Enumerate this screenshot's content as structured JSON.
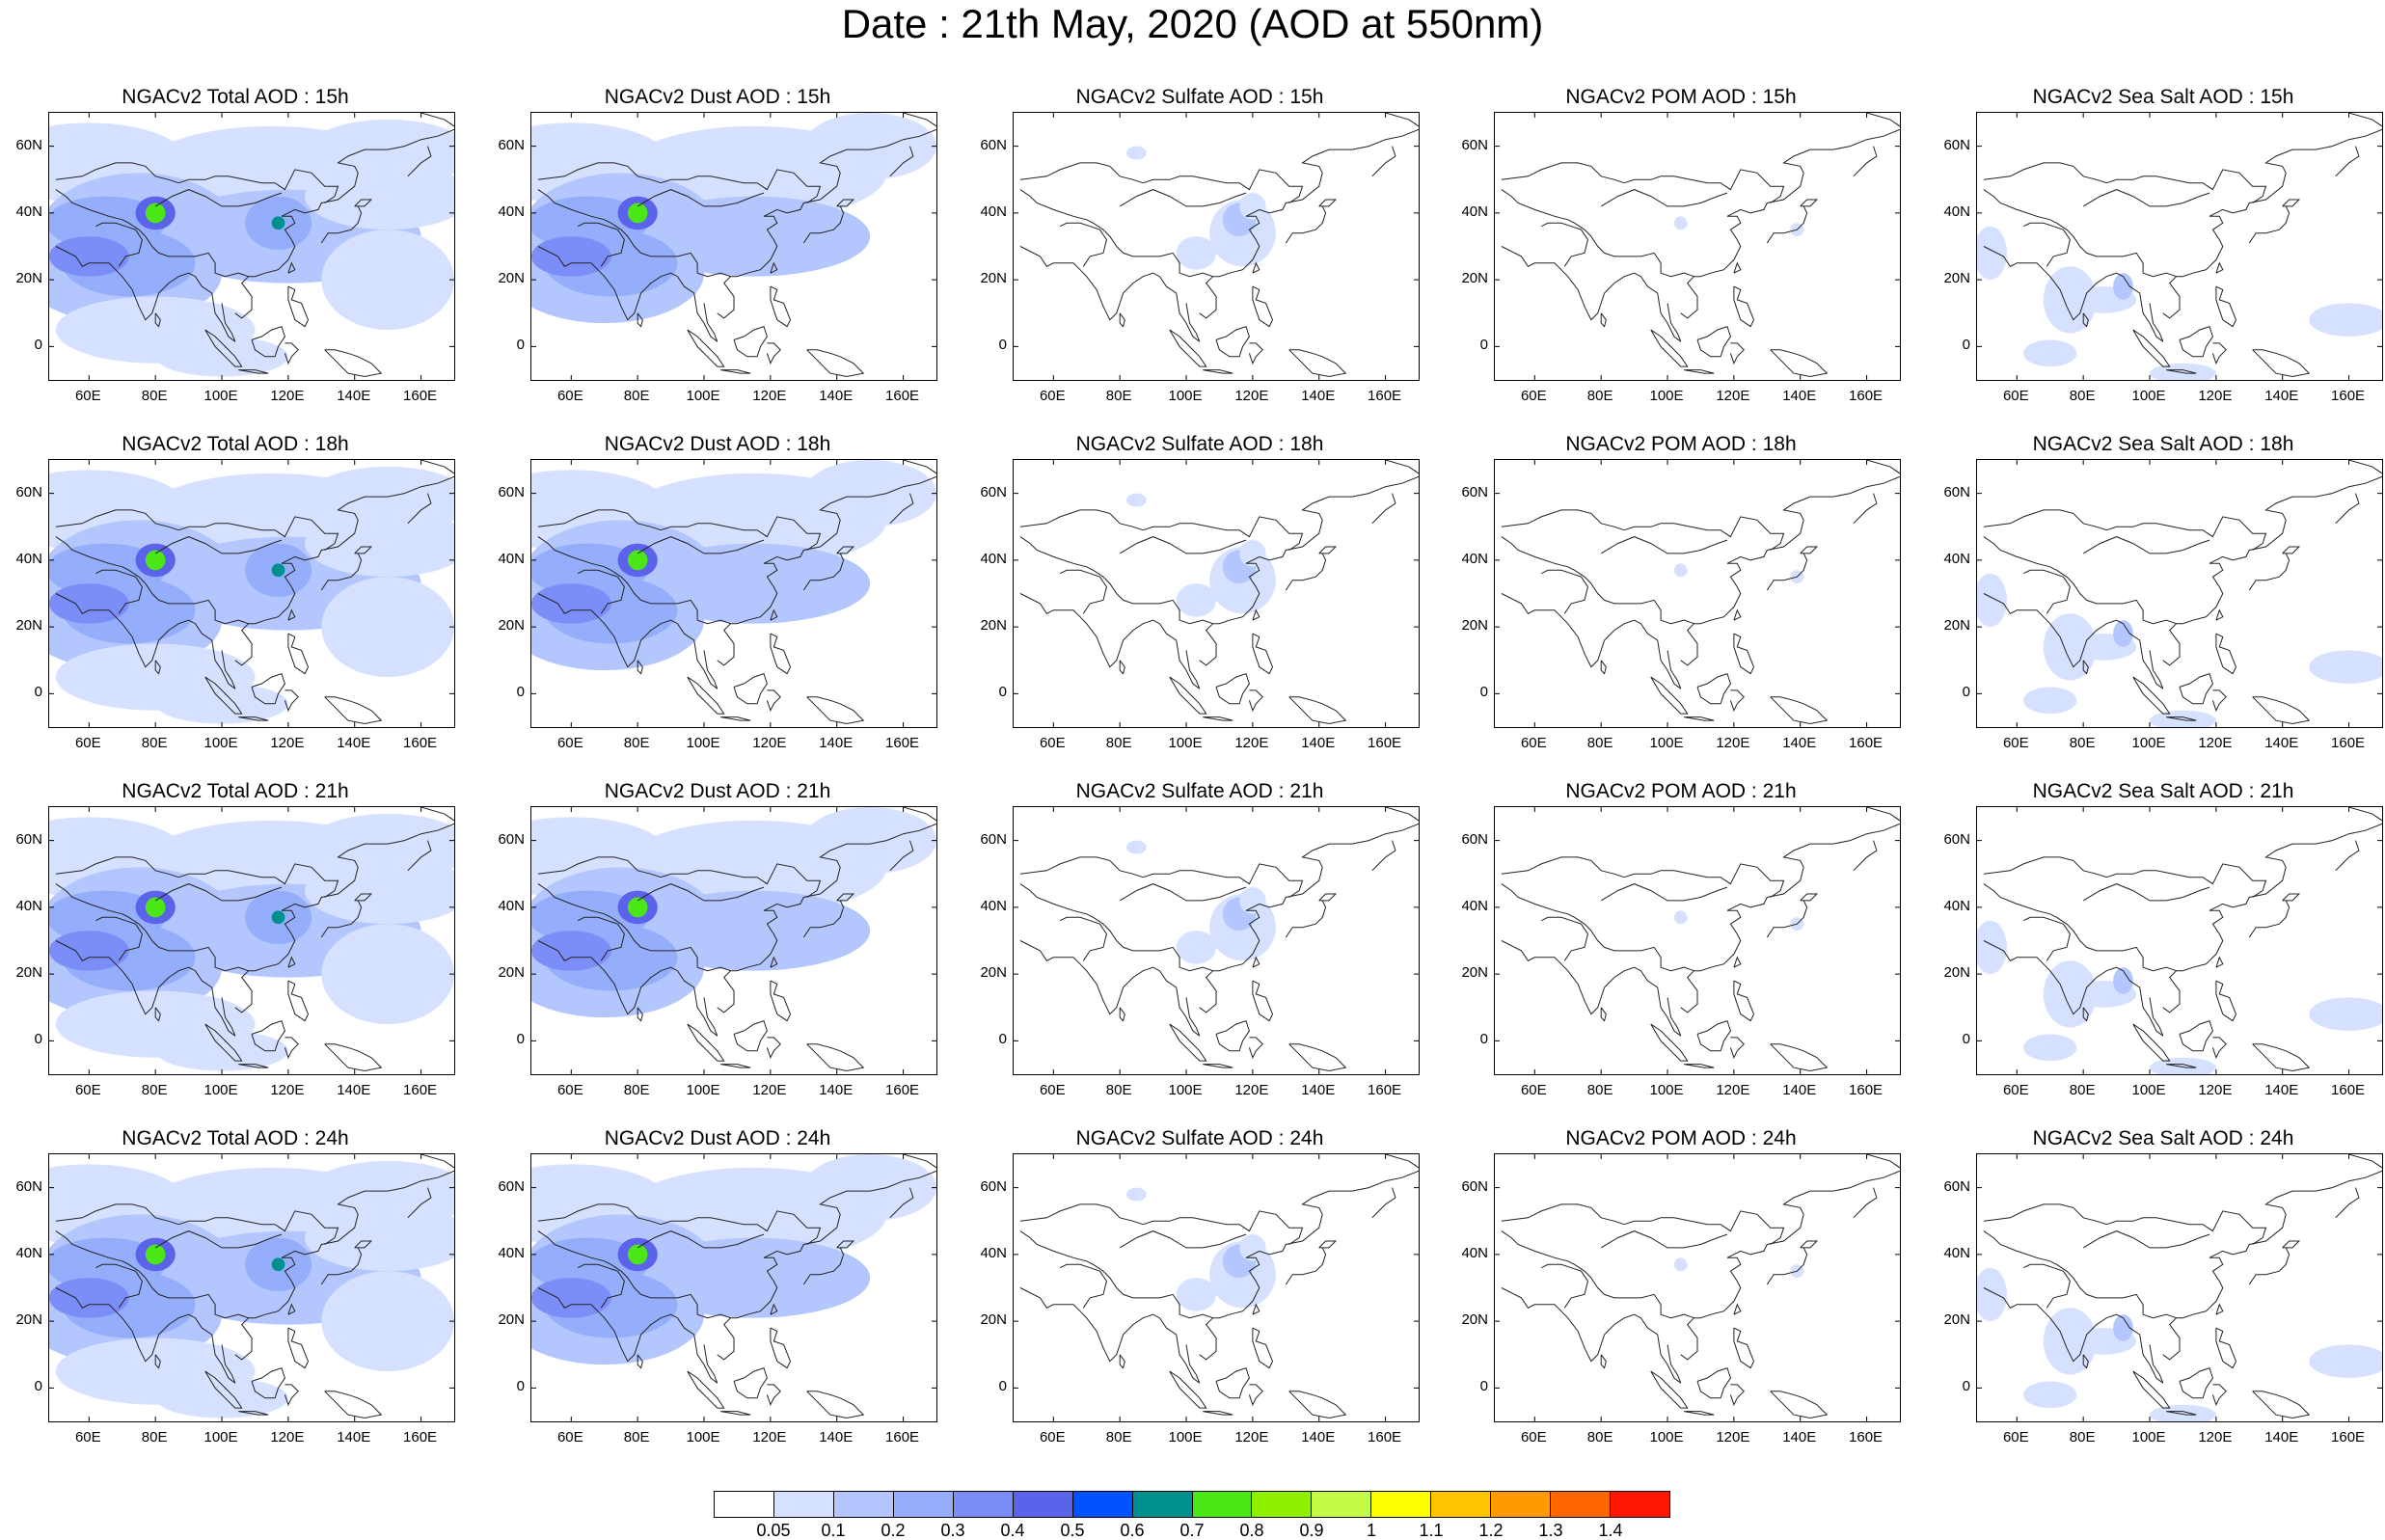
{
  "title": "Date : 21th May, 2020 (AOD at 550nm)",
  "lat_ticks": [
    "60N",
    "40N",
    "20N",
    "0"
  ],
  "lon_ticks": [
    "60E",
    "80E",
    "100E",
    "120E",
    "140E",
    "160E"
  ],
  "colorbar": {
    "colors": [
      "#ffffff",
      "#d5e1ff",
      "#b3c6fd",
      "#95aefb",
      "#7b8ef8",
      "#5a63ea",
      "#0051ff",
      "#00908e",
      "#4ce516",
      "#8ff100",
      "#c4fb46",
      "#fefe00",
      "#ffc400",
      "#ff9a00",
      "#ff6500",
      "#ff1500"
    ],
    "labels": [
      "0.05",
      "0.1",
      "0.2",
      "0.3",
      "0.4",
      "0.5",
      "0.6",
      "0.7",
      "0.8",
      "0.9",
      "1",
      "1.1",
      "1.2",
      "1.3",
      "1.4"
    ]
  },
  "panels": [
    {
      "title": "NGACv2 Total AOD : 15h",
      "type": "total"
    },
    {
      "title": "NGACv2 Dust AOD : 15h",
      "type": "dust"
    },
    {
      "title": "NGACv2 Sulfate AOD : 15h",
      "type": "sulfate"
    },
    {
      "title": "NGACv2 POM AOD : 15h",
      "type": "pom"
    },
    {
      "title": "NGACv2 Sea Salt AOD : 15h",
      "type": "seasalt"
    },
    {
      "title": "NGACv2 Total AOD : 18h",
      "type": "total"
    },
    {
      "title": "NGACv2 Dust AOD : 18h",
      "type": "dust"
    },
    {
      "title": "NGACv2 Sulfate AOD : 18h",
      "type": "sulfate"
    },
    {
      "title": "NGACv2 POM AOD : 18h",
      "type": "pom"
    },
    {
      "title": "NGACv2 Sea Salt AOD : 18h",
      "type": "seasalt"
    },
    {
      "title": "NGACv2 Total AOD : 21h",
      "type": "total"
    },
    {
      "title": "NGACv2 Dust AOD : 21h",
      "type": "dust"
    },
    {
      "title": "NGACv2 Sulfate AOD : 21h",
      "type": "sulfate"
    },
    {
      "title": "NGACv2 POM AOD : 21h",
      "type": "pom"
    },
    {
      "title": "NGACv2 Sea Salt AOD : 21h",
      "type": "seasalt"
    },
    {
      "title": "NGACv2 Total AOD : 24h",
      "type": "total"
    },
    {
      "title": "NGACv2 Dust AOD : 24h",
      "type": "dust"
    },
    {
      "title": "NGACv2 Sulfate AOD : 24h",
      "type": "sulfate"
    },
    {
      "title": "NGACv2 POM AOD : 24h",
      "type": "pom"
    },
    {
      "title": "NGACv2 Sea Salt  AOD : 24h",
      "type": "seasalt"
    }
  ]
}
